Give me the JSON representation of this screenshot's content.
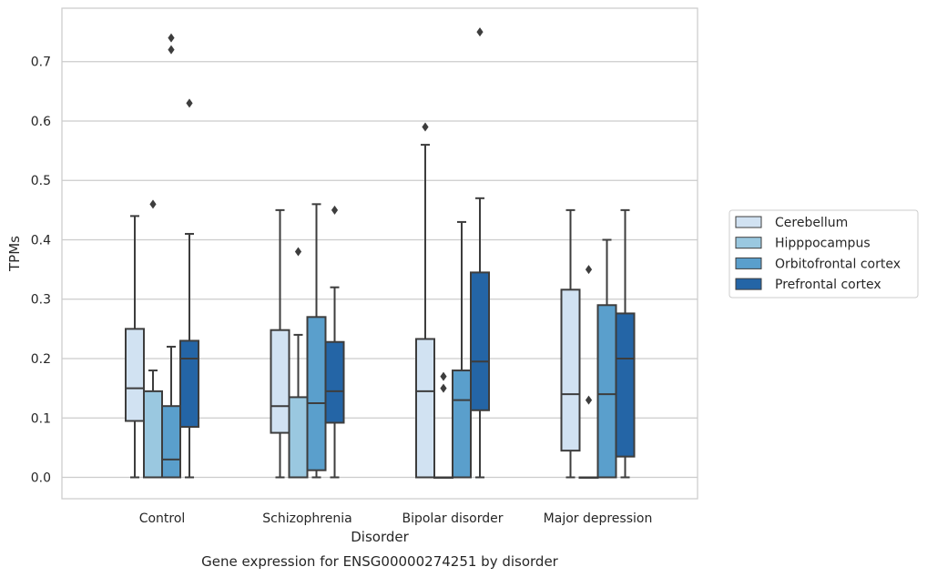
{
  "chart_data": {
    "type": "box",
    "title": "Gene expression for ENSG00000274251 by disorder",
    "xlabel": "Disorder",
    "ylabel": "TPMs",
    "ylim": [
      -0.036,
      0.79
    ],
    "yticks": [
      0.0,
      0.1,
      0.2,
      0.3,
      0.4,
      0.5,
      0.6,
      0.7
    ],
    "ytick_labels": [
      "0.0",
      "0.1",
      "0.2",
      "0.3",
      "0.4",
      "0.5",
      "0.6",
      "0.7"
    ],
    "grid": "horizontal",
    "legend_position": "right",
    "categories": [
      "Control",
      "Schizophrenia",
      "Bipolar disorder",
      "Major depression"
    ],
    "series": [
      {
        "name": "Cerebellum",
        "color": "#d1e2f2",
        "boxes": [
          {
            "whisker_low": 0.0,
            "q1": 0.095,
            "median": 0.15,
            "q3": 0.25,
            "whisker_high": 0.44,
            "outliers": []
          },
          {
            "whisker_low": 0.0,
            "q1": 0.075,
            "median": 0.12,
            "q3": 0.248,
            "whisker_high": 0.45,
            "outliers": []
          },
          {
            "whisker_low": 0.0,
            "q1": 0.0,
            "median": 0.145,
            "q3": 0.233,
            "whisker_high": 0.56,
            "outliers": [
              0.59
            ]
          },
          {
            "whisker_low": 0.0,
            "q1": 0.045,
            "median": 0.14,
            "q3": 0.316,
            "whisker_high": 0.45,
            "outliers": []
          }
        ]
      },
      {
        "name": "Hipppocampus",
        "color": "#9ac8e0",
        "boxes": [
          {
            "whisker_low": 0.0,
            "q1": 0.0,
            "median": 0.0,
            "q3": 0.145,
            "whisker_high": 0.18,
            "outliers": [
              0.46
            ]
          },
          {
            "whisker_low": 0.0,
            "q1": 0.0,
            "median": 0.0,
            "q3": 0.135,
            "whisker_high": 0.24,
            "outliers": [
              0.38
            ]
          },
          {
            "whisker_low": 0.0,
            "q1": 0.0,
            "median": 0.0,
            "q3": 0.0,
            "whisker_high": 0.0,
            "outliers": [
              0.15,
              0.17
            ]
          },
          {
            "whisker_low": 0.0,
            "q1": 0.0,
            "median": 0.0,
            "q3": 0.0,
            "whisker_high": 0.0,
            "outliers": [
              0.13,
              0.35
            ]
          }
        ]
      },
      {
        "name": "Orbitofrontal cortex",
        "color": "#5a9fcc",
        "boxes": [
          {
            "whisker_low": 0.0,
            "q1": 0.0,
            "median": 0.03,
            "q3": 0.12,
            "whisker_high": 0.22,
            "outliers": [
              0.72,
              0.74
            ]
          },
          {
            "whisker_low": 0.0,
            "q1": 0.012,
            "median": 0.125,
            "q3": 0.27,
            "whisker_high": 0.46,
            "outliers": []
          },
          {
            "whisker_low": 0.0,
            "q1": 0.0,
            "median": 0.13,
            "q3": 0.18,
            "whisker_high": 0.43,
            "outliers": []
          },
          {
            "whisker_low": 0.0,
            "q1": 0.0,
            "median": 0.14,
            "q3": 0.29,
            "whisker_high": 0.4,
            "outliers": []
          }
        ]
      },
      {
        "name": "Prefrontal cortex",
        "color": "#2465a6",
        "boxes": [
          {
            "whisker_low": 0.0,
            "q1": 0.085,
            "median": 0.2,
            "q3": 0.23,
            "whisker_high": 0.41,
            "outliers": [
              0.63
            ]
          },
          {
            "whisker_low": 0.0,
            "q1": 0.092,
            "median": 0.145,
            "q3": 0.228,
            "whisker_high": 0.32,
            "outliers": [
              0.45
            ]
          },
          {
            "whisker_low": 0.0,
            "q1": 0.113,
            "median": 0.195,
            "q3": 0.345,
            "whisker_high": 0.47,
            "outliers": [
              0.75
            ]
          },
          {
            "whisker_low": 0.0,
            "q1": 0.035,
            "median": 0.2,
            "q3": 0.276,
            "whisker_high": 0.45,
            "outliers": []
          }
        ]
      }
    ]
  }
}
